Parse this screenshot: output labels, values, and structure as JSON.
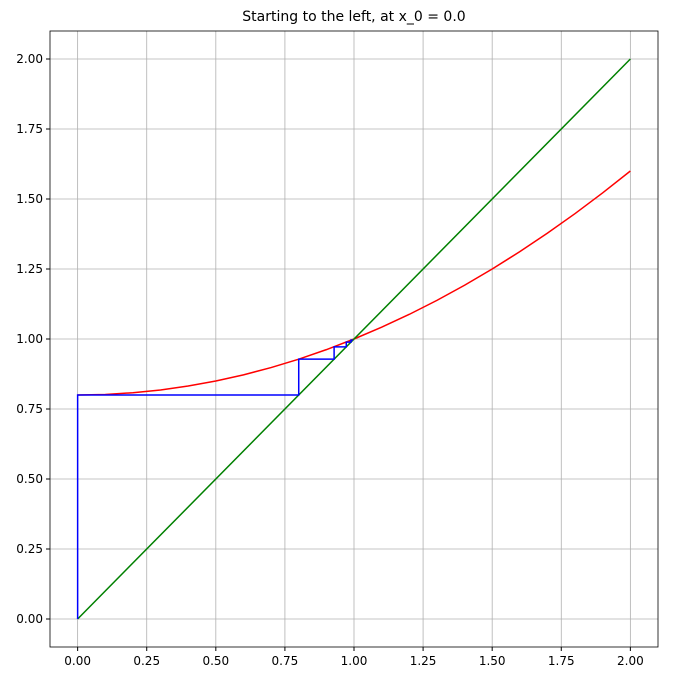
{
  "chart_data": {
    "type": "line",
    "title": "Starting to the left, at x_0 = 0.0",
    "xlim": [
      -0.1,
      2.1
    ],
    "ylim": [
      -0.1,
      2.1
    ],
    "xticks": [
      {
        "value": 0,
        "label": "0.00"
      },
      {
        "value": 0.25,
        "label": "0.25"
      },
      {
        "value": 0.5,
        "label": "0.50"
      },
      {
        "value": 0.75,
        "label": "0.75"
      },
      {
        "value": 1,
        "label": "1.00"
      },
      {
        "value": 1.25,
        "label": "1.25"
      },
      {
        "value": 1.5,
        "label": "1.50"
      },
      {
        "value": 1.75,
        "label": "1.75"
      },
      {
        "value": 2,
        "label": "2.00"
      }
    ],
    "yticks": [
      {
        "value": 0,
        "label": "0.00"
      },
      {
        "value": 0.25,
        "label": "0.25"
      },
      {
        "value": 0.5,
        "label": "0.50"
      },
      {
        "value": 0.75,
        "label": "0.75"
      },
      {
        "value": 1,
        "label": "1.00"
      },
      {
        "value": 1.25,
        "label": "1.25"
      },
      {
        "value": 1.5,
        "label": "1.50"
      },
      {
        "value": 1.75,
        "label": "1.75"
      },
      {
        "value": 2,
        "label": "2.00"
      }
    ],
    "grid": true,
    "series": [
      {
        "color": "#ff0000",
        "x": [
          0,
          0.1,
          0.2,
          0.3,
          0.4,
          0.5,
          0.6,
          0.7,
          0.8,
          0.9,
          1.0,
          1.1,
          1.2,
          1.3,
          1.4,
          1.5,
          1.6,
          1.7,
          1.8,
          1.9,
          2.0
        ],
        "values": [
          0.8,
          0.802,
          0.808,
          0.818,
          0.832,
          0.85,
          0.872,
          0.898,
          0.928,
          0.962,
          1.0,
          1.042,
          1.088,
          1.138,
          1.192,
          1.25,
          1.312,
          1.378,
          1.448,
          1.522,
          1.6
        ]
      },
      {
        "color": "#008000",
        "x": [
          0,
          2
        ],
        "values": [
          0,
          2
        ]
      },
      {
        "color": "#0000ff",
        "x": [
          0,
          0,
          0.8,
          0.8,
          0.928,
          0.928,
          0.972,
          0.972,
          0.989,
          0.989,
          0.996
        ],
        "values": [
          0,
          0.8,
          0.8,
          0.928,
          0.928,
          0.972,
          0.972,
          0.989,
          0.989,
          0.996,
          0.996
        ]
      }
    ]
  }
}
